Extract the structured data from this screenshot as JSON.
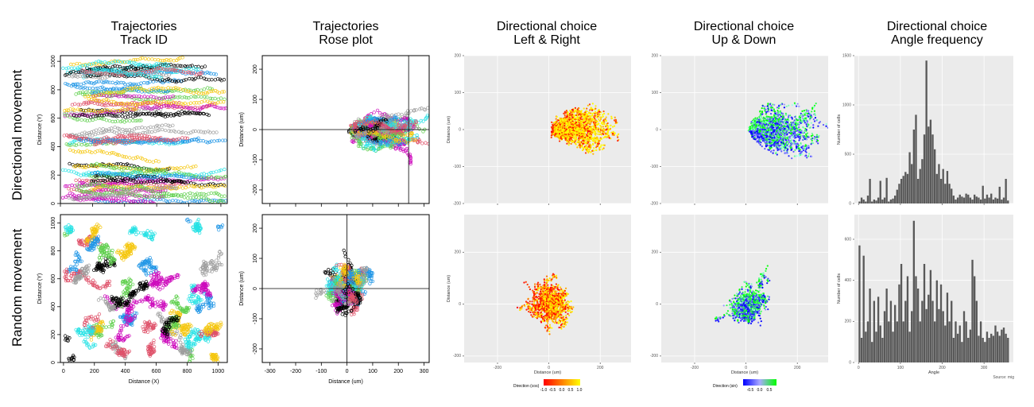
{
  "row_labels": [
    "Directional movement",
    "Random movement"
  ],
  "column_titles": [
    {
      "line1": "Trajectories",
      "line2": "Track ID"
    },
    {
      "line1": "Trajectories",
      "line2": "Rose plot"
    },
    {
      "line1": "Directional choice",
      "line2": "Left & Right"
    },
    {
      "line1": "Directional choice",
      "line2": "Up & Down"
    },
    {
      "line1": "Directional choice",
      "line2": "Angle frequency"
    }
  ],
  "colors": {
    "track_palette": [
      "#000000",
      "#df536b",
      "#61d04f",
      "#2297e6",
      "#28e2e5",
      "#cd0bbc",
      "#f5c710",
      "#9e9e9e"
    ],
    "grid_bg": "#ebebeb",
    "bar": "#595959"
  },
  "legends": {
    "left_right": {
      "title": "Direction (cos)",
      "ticks": [
        "-1.0",
        "-0.5",
        "0.0",
        "0.5",
        "1.0"
      ],
      "colors": [
        "#ff0000",
        "#ffff00"
      ]
    },
    "up_down": {
      "title": "Direction (sin)",
      "ticks": [
        "-0.5",
        "0.0",
        "0.5"
      ],
      "colors": [
        "#0000ff",
        "#00ff00"
      ]
    }
  },
  "source_note": "Source: mig",
  "chart_data": [
    {
      "id": "track-dir",
      "type": "scatter",
      "title": "Trajectories Track ID",
      "xlabel": "",
      "ylabel": "Distance (Y)",
      "xlim": [
        0,
        1040
      ],
      "ylim": [
        0,
        1040
      ],
      "xticks": [
        0,
        200,
        400,
        600,
        800,
        1000
      ],
      "yticks": [
        0,
        200,
        400,
        600,
        800,
        1000
      ],
      "show_xtick_labels": false,
      "pattern": "horizontal_tracks"
    },
    {
      "id": "rose-dir",
      "type": "scatter",
      "title": "Trajectories Rose plot",
      "xlabel": "",
      "ylabel": "Distance (um)",
      "xlim": [
        -330,
        320
      ],
      "ylim": [
        -245,
        245
      ],
      "xticks": [
        -300,
        -200,
        -100,
        0,
        100,
        200,
        300
      ],
      "yticks": [
        -200,
        -100,
        0,
        100,
        200
      ],
      "show_xtick_labels": false,
      "crosshair": [
        240,
        0
      ],
      "pattern": "directional_cloud"
    },
    {
      "id": "lr-dir",
      "type": "scatter",
      "title": "Directional choice Left & Right",
      "xlabel": "",
      "ylabel": "Distance (um)",
      "xlim": [
        -330,
        320
      ],
      "ylim": [
        -200,
        200
      ],
      "xticks": [
        -200,
        0,
        200
      ],
      "yticks": [
        -200,
        -100,
        0,
        100,
        200
      ],
      "show_xtick_labels": false,
      "color_by": "cos",
      "pattern": "directional_cloud"
    },
    {
      "id": "ud-dir",
      "type": "scatter",
      "title": "Directional choice Up & Down",
      "xlabel": "",
      "ylabel": "",
      "xlim": [
        -330,
        320
      ],
      "ylim": [
        -200,
        200
      ],
      "xticks": [
        -200,
        0,
        200
      ],
      "yticks": [
        -200,
        -100,
        0,
        100,
        200
      ],
      "show_xtick_labels": false,
      "color_by": "sin",
      "pattern": "directional_cloud"
    },
    {
      "id": "hist-dir",
      "type": "bar",
      "title": "Directional choice Angle frequency",
      "xlabel": "",
      "ylabel": "Number of cells",
      "xlim": [
        -10,
        370
      ],
      "ylim": [
        0,
        1500
      ],
      "xticks": [
        0,
        100,
        200,
        300
      ],
      "yticks": [
        0,
        500,
        1000,
        1500
      ],
      "show_xtick_labels": false,
      "bins": [
        0,
        5,
        10,
        15,
        20,
        25,
        30,
        35,
        40,
        45,
        50,
        55,
        60,
        65,
        70,
        75,
        80,
        85,
        90,
        95,
        100,
        105,
        110,
        115,
        120,
        125,
        130,
        135,
        140,
        145,
        150,
        155,
        160,
        165,
        170,
        175,
        180,
        185,
        190,
        195,
        200,
        205,
        210,
        215,
        220,
        225,
        230,
        235,
        240,
        245,
        250,
        255,
        260,
        265,
        270,
        275,
        280,
        285,
        290,
        295,
        300,
        305,
        310,
        315,
        320,
        325,
        330,
        335,
        340,
        345,
        350,
        355
      ],
      "values": [
        20,
        60,
        40,
        20,
        80,
        250,
        20,
        40,
        30,
        60,
        230,
        40,
        60,
        260,
        20,
        40,
        50,
        80,
        140,
        200,
        250,
        280,
        320,
        300,
        520,
        400,
        750,
        900,
        250,
        350,
        450,
        700,
        1450,
        780,
        850,
        700,
        550,
        300,
        400,
        250,
        350,
        200,
        330,
        200,
        150,
        80,
        40,
        60,
        90,
        70,
        60,
        100,
        90,
        60,
        40,
        90,
        70,
        60,
        40,
        180,
        50,
        90,
        60,
        100,
        40,
        60,
        50,
        170,
        40,
        60,
        250,
        30
      ]
    },
    {
      "id": "track-rand",
      "type": "scatter",
      "title": "Trajectories Track ID",
      "xlabel": "Distance (X)",
      "ylabel": "Distance (Y)",
      "xlim": [
        -20,
        1060
      ],
      "ylim": [
        0,
        1060
      ],
      "xticks": [
        0,
        200,
        400,
        600,
        800,
        1000
      ],
      "yticks": [
        0,
        200,
        400,
        600,
        800,
        1000
      ],
      "show_xtick_labels": true,
      "pattern": "random_tracks"
    },
    {
      "id": "rose-rand",
      "type": "scatter",
      "title": "Trajectories Rose plot",
      "xlabel": "Distance (um)",
      "ylabel": "Distance (um)",
      "xlim": [
        -330,
        320
      ],
      "ylim": [
        -245,
        245
      ],
      "xticks": [
        -300,
        -200,
        -100,
        0,
        100,
        200,
        300
      ],
      "yticks": [
        -200,
        -100,
        0,
        100,
        200
      ],
      "show_xtick_labels": true,
      "crosshair": [
        0,
        0
      ],
      "pattern": "random_cloud"
    },
    {
      "id": "lr-rand",
      "type": "scatter",
      "title": "Directional choice Left & Right",
      "xlabel": "Distance (um)",
      "ylabel": "Distance (um)",
      "xlim": [
        -330,
        320
      ],
      "ylim": [
        -225,
        345
      ],
      "xticks": [
        -200,
        0,
        200
      ],
      "yticks": [
        -200,
        0,
        200
      ],
      "show_xtick_labels": true,
      "color_by": "cos",
      "pattern": "random_cloud"
    },
    {
      "id": "ud-rand",
      "type": "scatter",
      "title": "Directional choice Up & Down",
      "xlabel": "Distance (um)",
      "ylabel": "",
      "xlim": [
        -330,
        320
      ],
      "ylim": [
        -225,
        345
      ],
      "xticks": [
        -200,
        0,
        200
      ],
      "yticks": [
        -200,
        0,
        200
      ],
      "show_xtick_labels": true,
      "color_by": "sin",
      "pattern": "random_cloud"
    },
    {
      "id": "hist-rand",
      "type": "bar",
      "title": "Directional choice Angle frequency",
      "xlabel": "Angle",
      "ylabel": "Number of cells",
      "xlim": [
        -10,
        370
      ],
      "ylim": [
        0,
        720
      ],
      "xticks": [
        0,
        100,
        200,
        300
      ],
      "yticks": [
        0,
        200,
        400,
        600
      ],
      "show_xtick_labels": true,
      "bins": [
        0,
        5,
        10,
        15,
        20,
        25,
        30,
        35,
        40,
        45,
        50,
        55,
        60,
        65,
        70,
        75,
        80,
        85,
        90,
        95,
        100,
        105,
        110,
        115,
        120,
        125,
        130,
        135,
        140,
        145,
        150,
        155,
        160,
        165,
        170,
        175,
        180,
        185,
        190,
        195,
        200,
        205,
        210,
        215,
        220,
        225,
        230,
        235,
        240,
        245,
        250,
        255,
        260,
        265,
        270,
        275,
        280,
        285,
        290,
        295,
        300,
        305,
        310,
        315,
        320,
        325,
        330,
        335,
        340,
        345,
        350,
        355
      ],
      "values": [
        570,
        120,
        520,
        150,
        200,
        360,
        100,
        300,
        150,
        320,
        180,
        120,
        250,
        360,
        200,
        300,
        150,
        280,
        200,
        380,
        480,
        200,
        300,
        420,
        150,
        250,
        690,
        420,
        360,
        200,
        300,
        480,
        260,
        330,
        450,
        300,
        200,
        400,
        260,
        380,
        250,
        180,
        340,
        200,
        300,
        120,
        200,
        140,
        180,
        100,
        250,
        200,
        120,
        160,
        500,
        420,
        300,
        130,
        200,
        120,
        100,
        150,
        120,
        140,
        130,
        180,
        150,
        130,
        160,
        170,
        140,
        120
      ]
    }
  ]
}
